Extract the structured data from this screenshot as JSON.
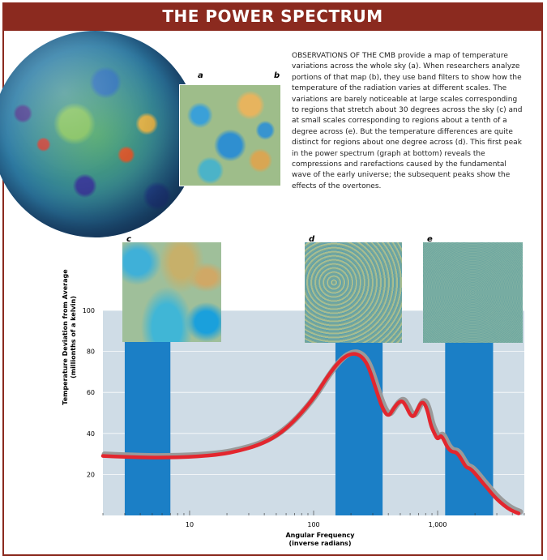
{
  "header": {
    "title": "THE POWER SPECTRUM"
  },
  "panel_labels": {
    "a": "a",
    "b": "b",
    "c": "c",
    "d": "d",
    "e": "e"
  },
  "description": "OBSERVATIONS OF THE CMB provide a map of temperature variations across the whole sky (a). When researchers analyze portions of that map (b), they use band filters to show how the temperature of the radiation varies at different scales. The variations are barely noticeable at large scales corresponding to regions that stretch about 30 degrees across the sky (c) and at small scales corresponding to regions about a tenth of a degree across (e). But the temperature differences are quite distinct for regions about one degree across (d). This first peak in the power spectrum (graph at bottom) reveals the compressions and rarefactions caused by the fundamental wave of the early universe; the subsequent peaks show the effects of the overtones.",
  "colors": {
    "banner": "#8b2a1f",
    "plot_bg": "#cfdce6",
    "band": "#1b7fc6",
    "curve": "#e3262e",
    "curve_shadow": "#9a9a9a"
  },
  "chart_data": {
    "type": "line",
    "xlabel_line1": "Angular Frequency",
    "xlabel_line2": "(inverse radians)",
    "ylabel_line1": "Temperature Deviation from Average",
    "ylabel_line2": "(millionths of a kelvin)",
    "x_scale": "log",
    "xlim": [
      2,
      5000
    ],
    "ylim": [
      0,
      100
    ],
    "yticks": [
      20,
      40,
      60,
      80,
      100
    ],
    "xticks": [
      {
        "value": 10,
        "label": "10"
      },
      {
        "value": 100,
        "label": "100"
      },
      {
        "value": 1000,
        "label": "1,000"
      }
    ],
    "grid": true,
    "bands": [
      {
        "label": "c",
        "from": 3,
        "to": 7
      },
      {
        "label": "d",
        "from": 150,
        "to": 360
      },
      {
        "label": "e",
        "from": 1150,
        "to": 2800
      }
    ],
    "series": [
      {
        "points": [
          [
            2,
            29
          ],
          [
            3,
            28.5
          ],
          [
            5,
            28.2
          ],
          [
            8,
            28.3
          ],
          [
            12,
            28.8
          ],
          [
            18,
            29.8
          ],
          [
            25,
            31.5
          ],
          [
            35,
            34
          ],
          [
            50,
            38.5
          ],
          [
            70,
            46
          ],
          [
            100,
            57
          ],
          [
            130,
            68
          ],
          [
            160,
            75
          ],
          [
            190,
            78.5
          ],
          [
            220,
            79
          ],
          [
            250,
            77
          ],
          [
            280,
            72
          ],
          [
            320,
            61
          ],
          [
            360,
            52
          ],
          [
            400,
            48
          ],
          [
            440,
            52
          ],
          [
            480,
            55
          ],
          [
            520,
            56
          ],
          [
            560,
            53
          ],
          [
            600,
            49
          ],
          [
            640,
            48
          ],
          [
            680,
            51
          ],
          [
            730,
            55
          ],
          [
            780,
            55
          ],
          [
            830,
            51
          ],
          [
            880,
            44
          ],
          [
            940,
            40
          ],
          [
            1000,
            37
          ],
          [
            1050,
            39
          ],
          [
            1100,
            38
          ],
          [
            1200,
            33
          ],
          [
            1300,
            31
          ],
          [
            1400,
            31
          ],
          [
            1500,
            29
          ],
          [
            1600,
            26
          ],
          [
            1700,
            23.5
          ],
          [
            1800,
            23
          ],
          [
            1900,
            22
          ],
          [
            2100,
            19
          ],
          [
            2300,
            16
          ],
          [
            2500,
            13.5
          ],
          [
            2700,
            11
          ],
          [
            3000,
            8
          ],
          [
            3400,
            5
          ],
          [
            3900,
            2.5
          ],
          [
            4500,
            1
          ]
        ]
      }
    ]
  }
}
